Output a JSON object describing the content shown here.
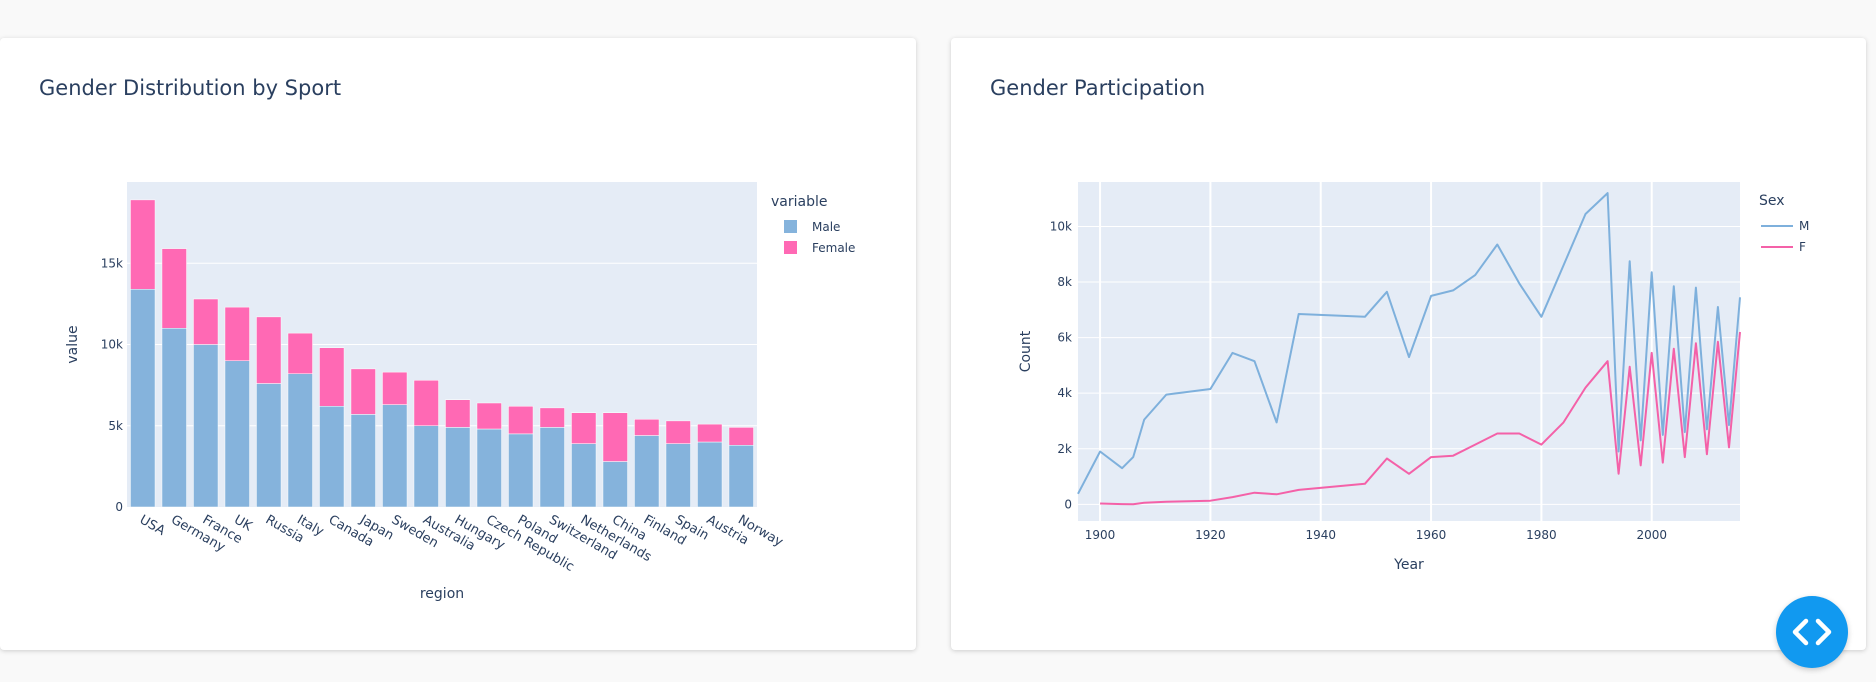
{
  "cards": [
    {
      "title": "Gender Distribution by Sport"
    },
    {
      "title": "Gender Participation"
    }
  ],
  "chart_data": [
    {
      "type": "bar",
      "stacked": true,
      "title": "Gender Distribution by Sport",
      "xlabel": "region",
      "ylabel": "value",
      "ylim": [
        0,
        20000
      ],
      "yticks": [
        0,
        5000,
        10000,
        15000
      ],
      "ytick_labels": [
        "0",
        "5k",
        "10k",
        "15k"
      ],
      "legend": {
        "title": "variable",
        "placement": "top-right outside"
      },
      "grid": true,
      "categories": [
        "USA",
        "Germany",
        "France",
        "UK",
        "Russia",
        "Italy",
        "Canada",
        "Japan",
        "Sweden",
        "Australia",
        "Hungary",
        "Czech Republic",
        "Poland",
        "Switzerland",
        "Netherlands",
        "China",
        "Finland",
        "Spain",
        "Austria",
        "Norway"
      ],
      "series": [
        {
          "name": "Male",
          "color": "#85b3dc",
          "values": [
            13400,
            11000,
            10000,
            9000,
            7600,
            8200,
            6200,
            5700,
            6300,
            5000,
            4900,
            4800,
            4500,
            4900,
            3900,
            2800,
            4400,
            3900,
            4000,
            3800
          ]
        },
        {
          "name": "Female",
          "color": "#ff69b4",
          "values": [
            5500,
            4900,
            2800,
            3300,
            4100,
            2500,
            3600,
            2800,
            2000,
            2800,
            1700,
            1600,
            1700,
            1200,
            1900,
            3000,
            1000,
            1400,
            1100,
            1100
          ]
        }
      ]
    },
    {
      "type": "line",
      "title": "Gender Participation",
      "xlabel": "Year",
      "ylabel": "Count",
      "xlim": [
        1896,
        2016
      ],
      "ylim": [
        -600,
        11600
      ],
      "xticks": [
        1900,
        1920,
        1940,
        1960,
        1980,
        2000
      ],
      "yticks": [
        0,
        2000,
        4000,
        6000,
        8000,
        10000
      ],
      "ytick_labels": [
        "0",
        "2k",
        "4k",
        "6k",
        "8k",
        "10k"
      ],
      "legend": {
        "title": "Sex",
        "placement": "top-right outside"
      },
      "grid": true,
      "series": [
        {
          "name": "M",
          "color": "#7eb0dc",
          "x": [
            1896,
            1900,
            1904,
            1906,
            1908,
            1912,
            1920,
            1924,
            1928,
            1932,
            1936,
            1948,
            1952,
            1956,
            1960,
            1964,
            1968,
            1972,
            1976,
            1980,
            1984,
            1988,
            1992,
            1994,
            1996,
            1998,
            2000,
            2002,
            2004,
            2006,
            2008,
            2010,
            2012,
            2014,
            2016
          ],
          "y": [
            380,
            1900,
            1300,
            1700,
            3050,
            3950,
            4150,
            5450,
            5150,
            2950,
            6850,
            6750,
            7650,
            5300,
            7500,
            7700,
            8250,
            9350,
            7950,
            6750,
            8600,
            10450,
            11200,
            1900,
            8750,
            2300,
            8350,
            2500,
            7850,
            2600,
            7800,
            2700,
            7100,
            2850,
            7450
          ]
        },
        {
          "name": "F",
          "color": "#f461a8",
          "x": [
            1900,
            1904,
            1906,
            1908,
            1912,
            1920,
            1924,
            1928,
            1932,
            1936,
            1948,
            1952,
            1956,
            1960,
            1964,
            1968,
            1972,
            1976,
            1980,
            1984,
            1988,
            1992,
            1994,
            1996,
            1998,
            2000,
            2002,
            2004,
            2006,
            2008,
            2010,
            2012,
            2014,
            2016
          ],
          "y": [
            30,
            10,
            5,
            60,
            90,
            130,
            260,
            420,
            360,
            520,
            740,
            1650,
            1100,
            1700,
            1750,
            2150,
            2550,
            2550,
            2150,
            2950,
            4200,
            5150,
            1100,
            4950,
            1400,
            5450,
            1500,
            5600,
            1700,
            5800,
            1800,
            5850,
            2050,
            6200
          ]
        }
      ]
    }
  ]
}
